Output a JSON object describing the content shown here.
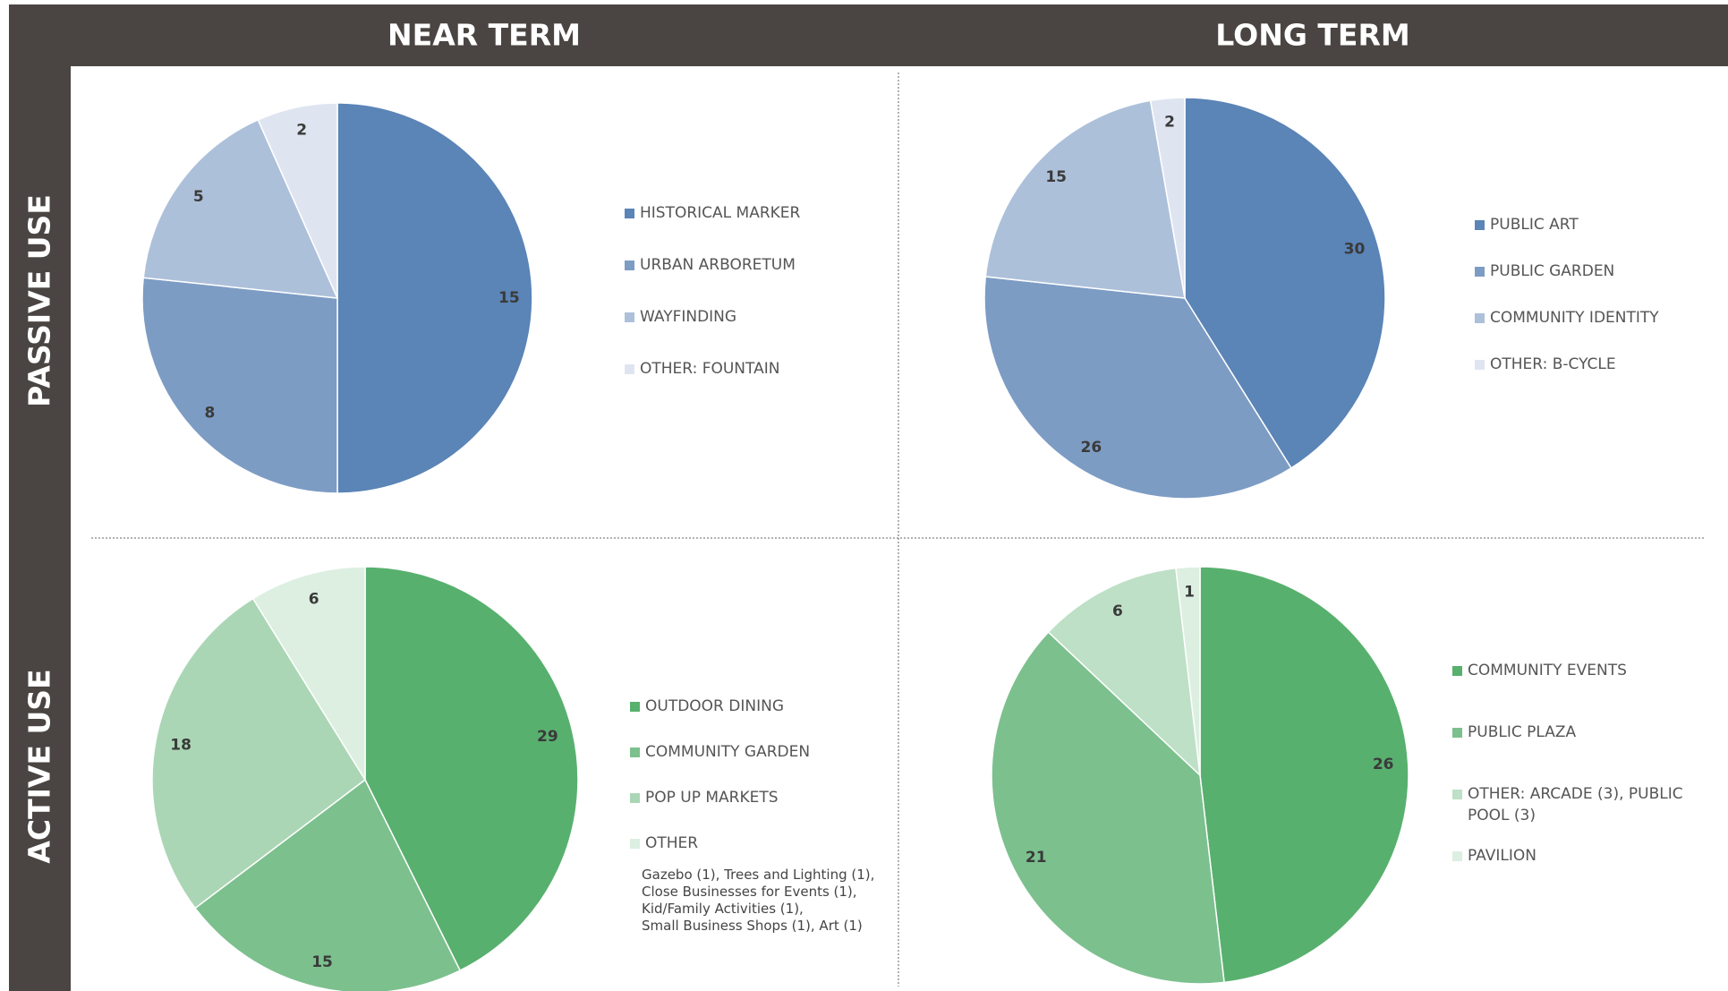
{
  "headers": {
    "columns": [
      "NEAR TERM",
      "LONG TERM"
    ],
    "rows": [
      "PASSIVE USE",
      "ACTIVE USE"
    ]
  },
  "chart_data": [
    {
      "type": "pie",
      "categories": [
        "HISTORICAL  MARKER",
        "URBAN ARBORETUM",
        "WAYFINDING",
        "OTHER: FOUNTAIN"
      ],
      "values": [
        15,
        8,
        5,
        2
      ],
      "colors": [
        "#5b84b7",
        "#7d9cc4",
        "#adc0da",
        "#dfe5f0"
      ]
    },
    {
      "type": "pie",
      "categories": [
        "PUBLIC ART",
        "PUBLIC GARDEN",
        "COMMUNITY IDENTITY",
        "OTHER: B-CYCLE"
      ],
      "values": [
        30,
        26,
        15,
        2
      ],
      "colors": [
        "#5b84b7",
        "#7d9cc4",
        "#adc0da",
        "#dfe5f0"
      ]
    },
    {
      "type": "pie",
      "categories": [
        "OUTDOOR DINING",
        "COMMUNITY GARDEN",
        "POP UP MARKETS",
        "OTHER"
      ],
      "values": [
        29,
        15,
        18,
        6
      ],
      "colors": [
        "#58b06e",
        "#7cc08e",
        "#abd6b5",
        "#dcefe1"
      ],
      "annotation": [
        "Gazebo (1), Trees and Lighting (1),",
        "Close Businesses for Events (1),",
        "Kid/Family Activities (1),",
        "Small Business Shops (1), Art (1)"
      ]
    },
    {
      "type": "pie",
      "categories": [
        "COMMUNITY EVENTS",
        "PUBLIC PLAZA",
        "OTHER: ARCADE (3), PUBLIC POOL (3)",
        "PAVILION"
      ],
      "values": [
        26,
        21,
        6,
        1
      ],
      "colors": [
        "#58b06e",
        "#7cc08e",
        "#bde0c6",
        "#dcefe1"
      ]
    }
  ]
}
